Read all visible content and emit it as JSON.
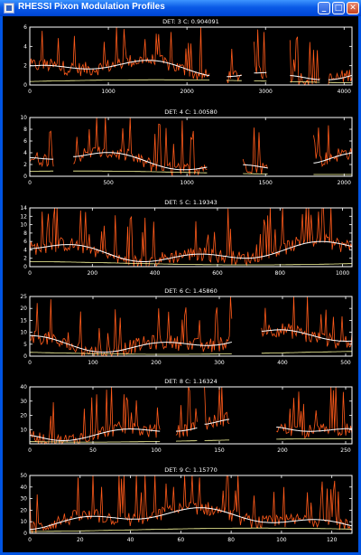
{
  "window": {
    "title": "RHESSI Pixon Modulation Profiles",
    "buttons": {
      "minimize": "_",
      "maximize": "□",
      "close": "✕"
    }
  },
  "colors": {
    "background": "#000000",
    "axes": "#ffffff",
    "data": "#ff5a1a",
    "smooth": "#ffffff",
    "lower": "#ffffa0"
  },
  "chart_data": [
    {
      "type": "line",
      "title": "DET: 3  C: 0.904091",
      "xlim": [
        0,
        4100
      ],
      "ylim": [
        0,
        6
      ],
      "xticks": [
        "0",
        "1000",
        "2000",
        "3000",
        "4000"
      ],
      "yticks": [
        "0",
        "2",
        "4",
        "6"
      ],
      "gaps": [
        [
          2300,
          2500
        ],
        [
          2700,
          2850
        ],
        [
          3020,
          3300
        ],
        [
          3700,
          3800
        ]
      ]
    },
    {
      "type": "line",
      "title": "DET: 4  C: 1.00580",
      "xlim": [
        0,
        2050
      ],
      "ylim": [
        0,
        10
      ],
      "xticks": [
        "0",
        "500",
        "1000",
        "1500",
        "2000"
      ],
      "yticks": [
        "0",
        "2",
        "4",
        "6",
        "8",
        "10"
      ],
      "gaps": [
        [
          150,
          270
        ],
        [
          1130,
          1350
        ],
        [
          1520,
          1800
        ]
      ]
    },
    {
      "type": "line",
      "title": "DET: 5  C: 1.19343",
      "xlim": [
        0,
        1030
      ],
      "ylim": [
        0,
        14
      ],
      "xticks": [
        "0",
        "200",
        "400",
        "600",
        "800",
        "1000"
      ],
      "yticks": [
        "0",
        "2",
        "4",
        "6",
        "8",
        "10",
        "12",
        "14"
      ],
      "gaps": []
    },
    {
      "type": "line",
      "title": "DET: 6  C: 1.45860",
      "xlim": [
        0,
        510
      ],
      "ylim": [
        0,
        25
      ],
      "xticks": [
        "0",
        "100",
        "200",
        "300",
        "400",
        "500"
      ],
      "yticks": [
        "0",
        "5",
        "10",
        "15",
        "20",
        "25"
      ],
      "gaps": [
        [
          320,
          365
        ]
      ]
    },
    {
      "type": "line",
      "title": "DET: 8  C: 1.16324",
      "xlim": [
        0,
        255
      ],
      "ylim": [
        0,
        40
      ],
      "xticks": [
        "0",
        "50",
        "100",
        "150",
        "200",
        "250"
      ],
      "yticks": [
        "10",
        "20",
        "30",
        "40"
      ],
      "gaps": [
        [
          103,
          115
        ],
        [
          133,
          138
        ],
        [
          158,
          195
        ]
      ]
    },
    {
      "type": "line",
      "title": "DET: 9  C: 1.15770",
      "xlim": [
        0,
        128
      ],
      "ylim": [
        0,
        50
      ],
      "xticks": [
        "0",
        "20",
        "40",
        "60",
        "80",
        "100",
        "120"
      ],
      "yticks": [
        "0",
        "10",
        "20",
        "30",
        "40",
        "50"
      ],
      "gaps": []
    }
  ]
}
